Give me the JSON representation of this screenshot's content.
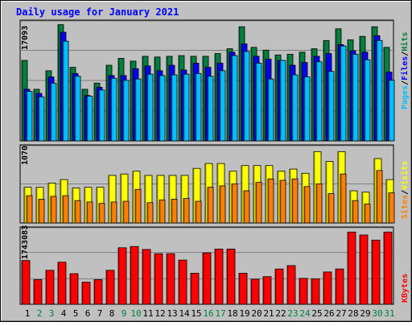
{
  "title": "Daily usage for January 2021",
  "panels": {
    "top": {
      "max_label": "17093",
      "legend": [
        {
          "text": "Pages",
          "color": "#00c0ff"
        },
        {
          "text": "/",
          "color": "#000000"
        },
        {
          "text": "Files",
          "color": "#0000ff"
        },
        {
          "text": "/",
          "color": "#000000"
        },
        {
          "text": "Hits",
          "color": "#008040"
        }
      ]
    },
    "middle": {
      "max_label": "1070",
      "legend": [
        {
          "text": "Sites",
          "color": "#ff8000"
        },
        {
          "text": "/",
          "color": "#000000"
        },
        {
          "text": "Visits",
          "color": "#ffff00"
        }
      ]
    },
    "bottom": {
      "max_label": "1743083",
      "legend": [
        {
          "text": "KBytes",
          "color": "#ff0000"
        }
      ]
    }
  },
  "colors": {
    "background": "#c0c0c0",
    "hits": "#008040",
    "files": "#0000ff",
    "pages": "#00c0ff",
    "visits": "#ffff00",
    "sites": "#ff8000",
    "kbytes": "#ff0000",
    "title": "#0000ff",
    "weekday_label": "#000000",
    "weekend_label": "#008040"
  },
  "chart_data": [
    {
      "type": "bar",
      "title": "Daily usage for January 2021",
      "x": [
        "1",
        "2",
        "3",
        "4",
        "5",
        "6",
        "7",
        "8",
        "9",
        "10",
        "11",
        "12",
        "13",
        "14",
        "15",
        "16",
        "17",
        "18",
        "19",
        "20",
        "21",
        "22",
        "23",
        "24",
        "25",
        "26",
        "27",
        "28",
        "29",
        "30",
        "31"
      ],
      "weekend_days": [
        "2",
        "3",
        "9",
        "10",
        "16",
        "17",
        "23",
        "24",
        "30",
        "31"
      ],
      "ylim": [
        0,
        17093
      ],
      "series": [
        {
          "name": "Hits",
          "values": [
            11700,
            7500,
            10200,
            16900,
            10700,
            7500,
            8400,
            11000,
            12000,
            11600,
            12300,
            12200,
            12300,
            12400,
            12300,
            12300,
            12700,
            13400,
            16600,
            13600,
            13200,
            12500,
            12600,
            12900,
            13400,
            14600,
            16300,
            14700,
            15200,
            16600,
            13600
          ]
        },
        {
          "name": "Files",
          "values": [
            7500,
            6900,
            9300,
            15800,
            9800,
            6600,
            7800,
            9500,
            9500,
            10500,
            10900,
            10200,
            11000,
            10300,
            11300,
            10700,
            11300,
            12900,
            14100,
            12300,
            11900,
            11700,
            11000,
            11400,
            12300,
            12700,
            14000,
            13100,
            12900,
            15300,
            10000
          ]
        },
        {
          "name": "Pages",
          "values": [
            7200,
            6400,
            8400,
            14500,
            9400,
            6500,
            7400,
            9100,
            8800,
            9000,
            9700,
            9500,
            9600,
            9700,
            9800,
            9400,
            10200,
            12400,
            13000,
            11300,
            9000,
            11700,
            9600,
            9300,
            11500,
            10100,
            13800,
            12600,
            11800,
            14600,
            8800
          ]
        }
      ]
    },
    {
      "type": "bar",
      "x": [
        "1",
        "2",
        "3",
        "4",
        "5",
        "6",
        "7",
        "8",
        "9",
        "10",
        "11",
        "12",
        "13",
        "14",
        "15",
        "16",
        "17",
        "18",
        "19",
        "20",
        "21",
        "22",
        "23",
        "24",
        "25",
        "26",
        "27",
        "28",
        "29",
        "30",
        "31"
      ],
      "ylim": [
        0,
        1070
      ],
      "series": [
        {
          "name": "Visits",
          "values": [
            510,
            510,
            570,
            620,
            500,
            510,
            510,
            680,
            700,
            740,
            680,
            680,
            680,
            680,
            780,
            850,
            850,
            740,
            820,
            820,
            820,
            740,
            770,
            710,
            1020,
            880,
            1020,
            460,
            440,
            920,
            620
          ]
        },
        {
          "name": "Sites",
          "values": [
            390,
            340,
            380,
            390,
            320,
            300,
            280,
            300,
            310,
            480,
            290,
            330,
            340,
            350,
            310,
            510,
            530,
            560,
            460,
            580,
            630,
            610,
            630,
            520,
            560,
            420,
            700,
            320,
            270,
            750,
            430
          ]
        }
      ]
    },
    {
      "type": "bar",
      "x": [
        "1",
        "2",
        "3",
        "4",
        "5",
        "6",
        "7",
        "8",
        "9",
        "10",
        "11",
        "12",
        "13",
        "14",
        "15",
        "16",
        "17",
        "18",
        "19",
        "20",
        "21",
        "22",
        "23",
        "24",
        "25",
        "26",
        "27",
        "28",
        "29",
        "30",
        "31"
      ],
      "ylim": [
        0,
        1743083
      ],
      "series": [
        {
          "name": "KBytes",
          "values": [
            1030000,
            580000,
            800000,
            990000,
            720000,
            520000,
            580000,
            800000,
            1330000,
            1360000,
            1290000,
            1190000,
            1190000,
            1040000,
            730000,
            1210000,
            1300000,
            1300000,
            730000,
            590000,
            650000,
            830000,
            910000,
            610000,
            600000,
            760000,
            830000,
            1700000,
            1630000,
            1510000,
            1700000
          ]
        }
      ]
    }
  ]
}
